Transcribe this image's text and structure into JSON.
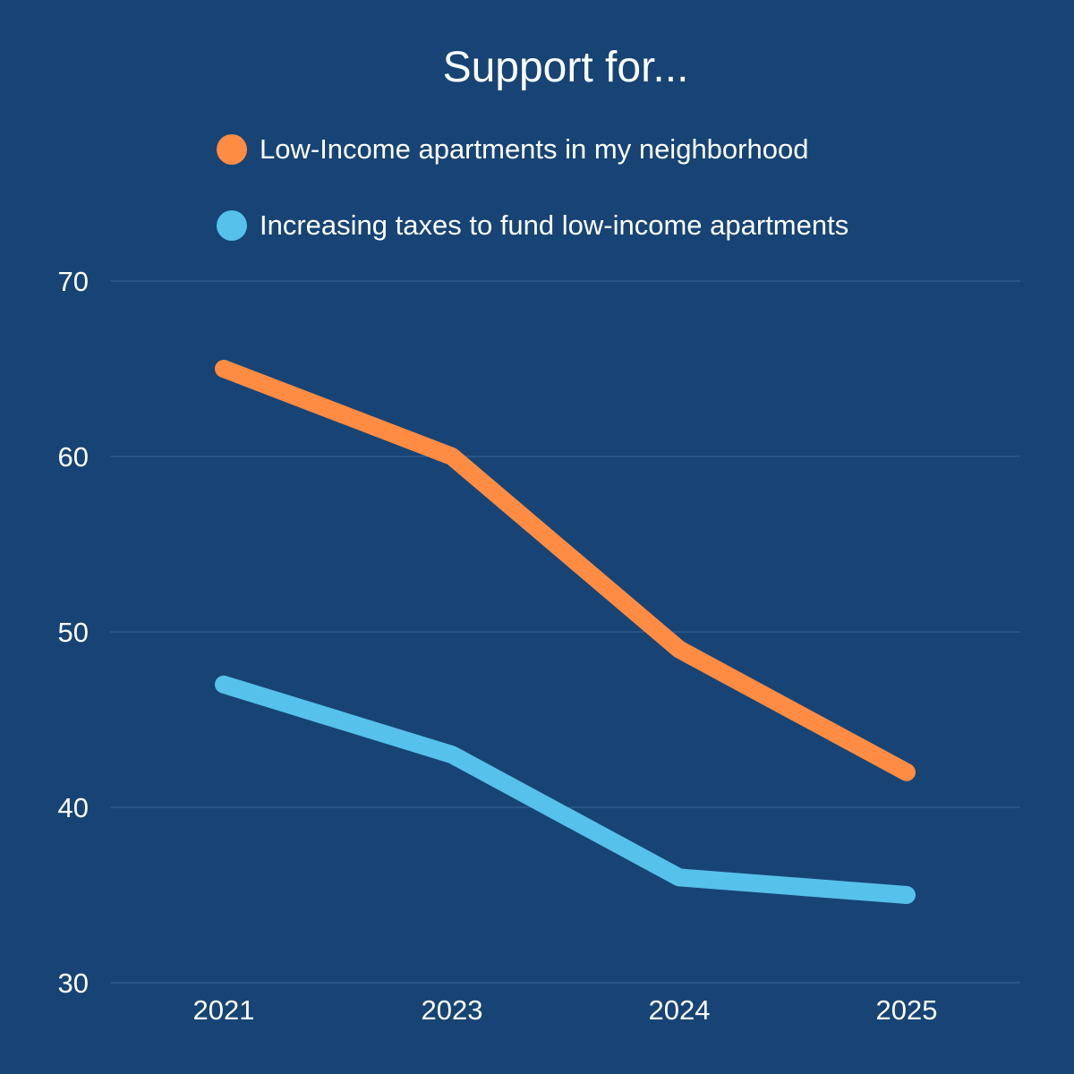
{
  "chart_data": {
    "type": "line",
    "title": "Support for...",
    "xlabel": "",
    "ylabel": "",
    "categories": [
      "2021",
      "2023",
      "2024",
      "2025"
    ],
    "series": [
      {
        "name": "Low-Income apartments in my neighborhood",
        "values": [
          65,
          60,
          49,
          42
        ],
        "color": "#ff8c42"
      },
      {
        "name": "Increasing taxes to fund low-income apartments",
        "values": [
          47,
          43,
          36,
          35
        ],
        "color": "#56c1ea"
      }
    ],
    "ylim": [
      30,
      70
    ],
    "yticks": [
      "30",
      "40",
      "50",
      "60",
      "70"
    ],
    "grid": true,
    "legend_position": "top"
  },
  "colors": {
    "background": "#174475",
    "text": "#ffffff",
    "grid": "#3a6496"
  }
}
